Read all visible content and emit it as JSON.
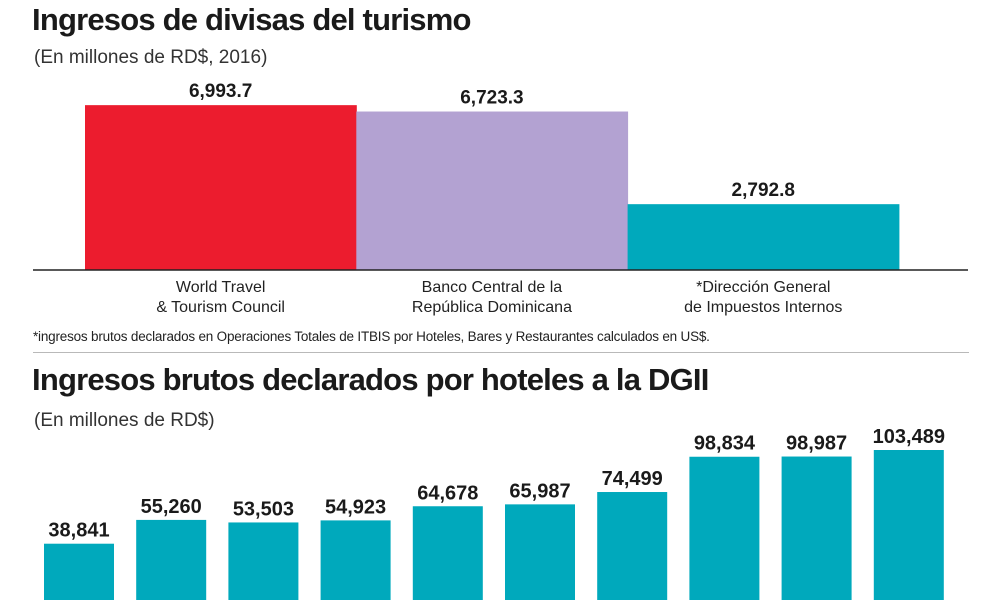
{
  "chart_data": [
    {
      "type": "bar",
      "title": "Ingresos de divisas del turismo",
      "subtitle": "(En millones de RD$, 2016)",
      "categories": [
        [
          "World Travel",
          "& Tourism Council"
        ],
        [
          "Banco Central de la",
          "República Dominicana"
        ],
        [
          "*Dirección General",
          "de Impuestos Internos"
        ]
      ],
      "values": [
        6993.7,
        6723.3,
        2792.8
      ],
      "value_labels": [
        "6,993.7",
        "6,723.3",
        "2,792.8"
      ],
      "colors": [
        "#ec1c2e",
        "#b3a2d2",
        "#00a9bc"
      ],
      "ylim": [
        0,
        7000
      ],
      "footnote": "*ingresos brutos declarados en Operaciones Totales de ITBIS por  Hoteles, Bares y Restaurantes calculados en US$."
    },
    {
      "type": "bar",
      "title": "Ingresos brutos declarados por hoteles a la DGII",
      "subtitle": "(En millones de RD$)",
      "values": [
        38841,
        55260,
        53503,
        54923,
        64678,
        65987,
        74499,
        98834,
        98987,
        103489
      ],
      "value_labels": [
        "38,841",
        "55,260",
        "53,503",
        "54,923",
        "64,678",
        "65,987",
        "74,499",
        "98,834",
        "98,987",
        "103,489"
      ],
      "colors": [
        "#00a9bc"
      ],
      "ylim": [
        0,
        103489
      ]
    }
  ]
}
